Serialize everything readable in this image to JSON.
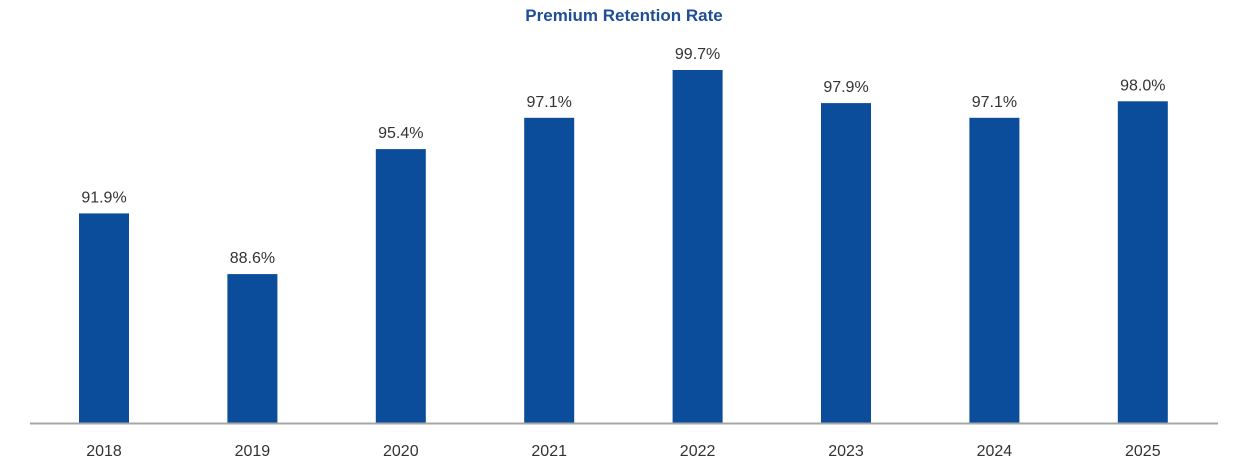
{
  "chart_data": {
    "type": "bar",
    "title": "Premium Retention Rate",
    "xlabel": "",
    "ylabel": "",
    "categories": [
      "2018",
      "2019",
      "2020",
      "2021",
      "2022",
      "2023",
      "2024",
      "2025"
    ],
    "values": [
      91.9,
      88.6,
      95.4,
      97.1,
      99.7,
      97.9,
      97.1,
      98.0
    ],
    "data_labels": [
      "91.9%",
      "88.6%",
      "95.4%",
      "97.1%",
      "99.7%",
      "97.9%",
      "97.1%",
      "98.0%"
    ],
    "ylim": [
      80,
      100
    ],
    "grid": false,
    "legend": "none",
    "bar_color": "#0b4d9a",
    "axis_color": "#a6a6a6"
  }
}
